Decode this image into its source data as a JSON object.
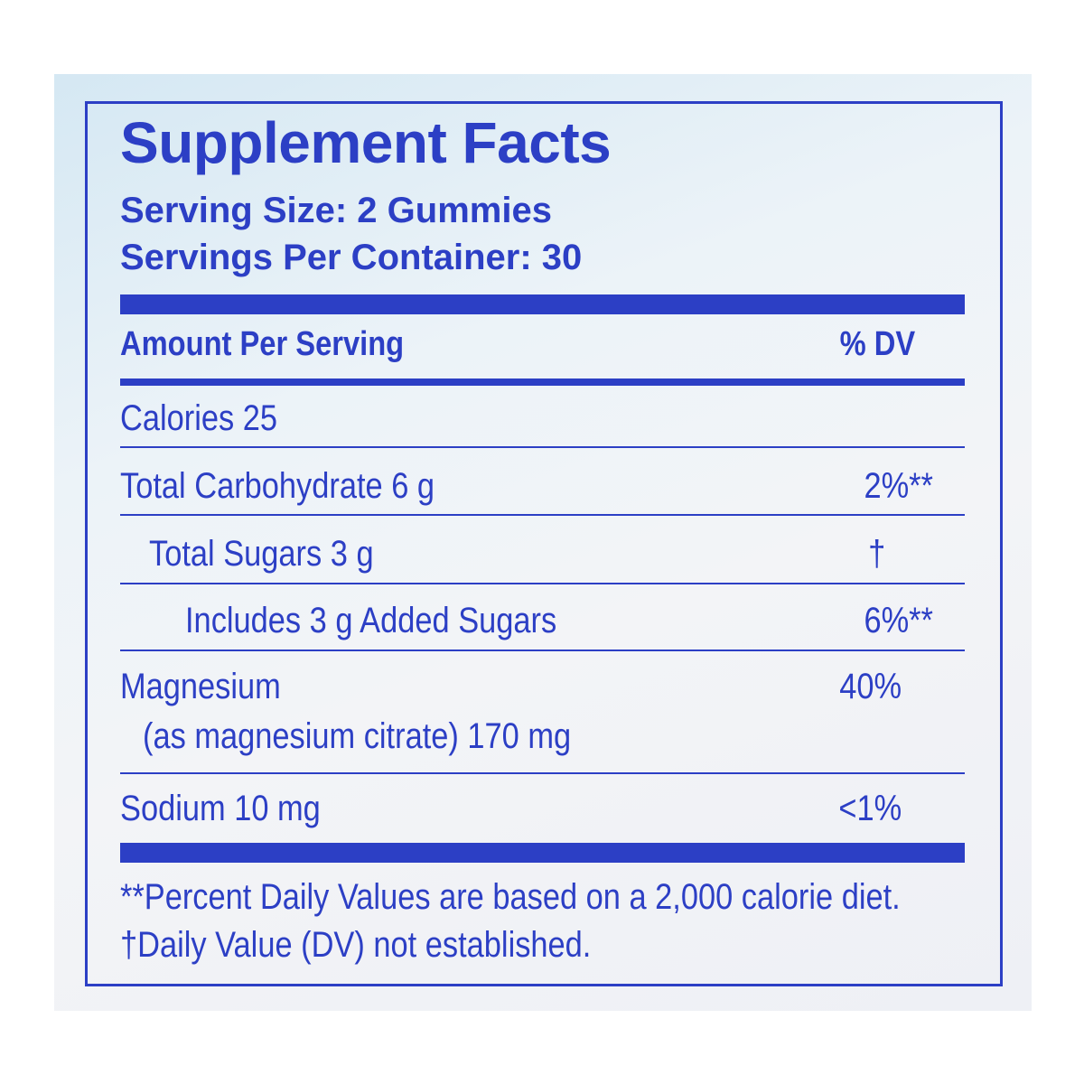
{
  "label": {
    "title": "Supplement Facts",
    "serving_size": "Serving Size:  2 Gummies",
    "servings_per_container": "Servings Per Container: 30",
    "header_amount": "Amount Per Serving",
    "header_dv": "% DV",
    "rows": [
      {
        "name": "Calories 25",
        "dv": ""
      },
      {
        "name": "Total Carbohydrate 6 g",
        "dv": "2%**"
      },
      {
        "name": "Total Sugars 3 g",
        "dv": "†"
      },
      {
        "name": "Includes 3 g Added Sugars",
        "dv": "6%**"
      },
      {
        "name": "Magnesium",
        "subname": "(as magnesium citrate) 170 mg",
        "dv": "40%"
      },
      {
        "name": "Sodium 10 mg",
        "dv": "<1%"
      }
    ],
    "footnote_1": "**Percent Daily Values are based on a 2,000 calorie diet.",
    "footnote_2": "†Daily Value (DV) not established."
  },
  "colors": {
    "ink": "#2c3fc5",
    "background": "#ffffff",
    "backdrop_tint": "#d5e8f3"
  }
}
